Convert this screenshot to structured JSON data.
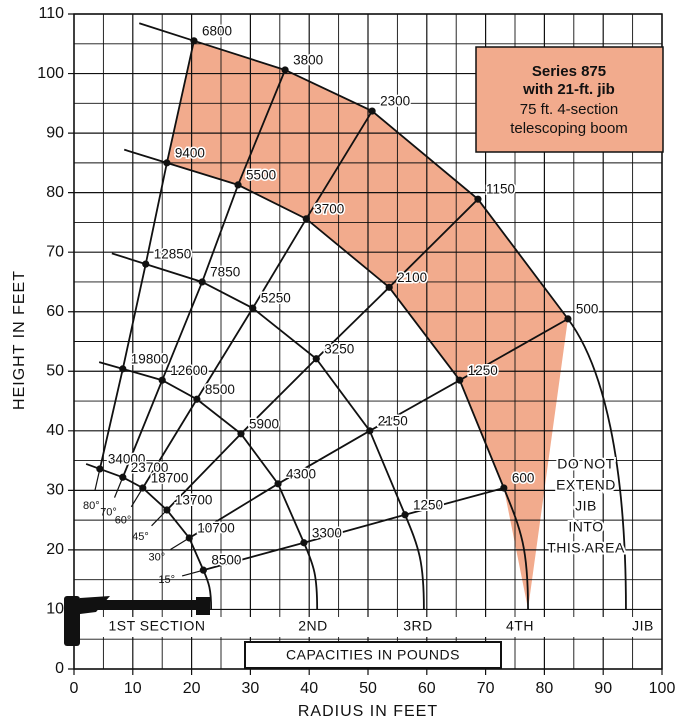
{
  "chart_data": {
    "type": "range-diagram",
    "title": [
      "Series 875",
      "with 21-ft. jib"
    ],
    "subtitle": [
      "75 ft. 4-section",
      "telescoping boom"
    ],
    "xlabel": "RADIUS IN FEET",
    "ylabel": "HEIGHT IN FEET",
    "xlim": [
      0,
      100
    ],
    "ylim": [
      0,
      110
    ],
    "xticks": [
      0,
      10,
      20,
      30,
      40,
      50,
      60,
      70,
      80,
      90,
      100
    ],
    "yticks": [
      0,
      10,
      20,
      30,
      40,
      50,
      60,
      70,
      80,
      90,
      100,
      110
    ],
    "grid": true,
    "series": [
      {
        "name": "80°",
        "x": [
          4.4,
          8.3,
          12.2,
          15.8,
          20.4
        ],
        "y": [
          33.6,
          50.4,
          68.0,
          85.0,
          105.5
        ],
        "capacities": [
          34000,
          19800,
          12850,
          9400,
          6800
        ]
      },
      {
        "name": "70°",
        "x": [
          8.3,
          15.0,
          21.8,
          27.9,
          35.9
        ],
        "y": [
          32.2,
          48.5,
          65.0,
          81.3,
          100.6
        ],
        "capacities": [
          23700,
          12600,
          7850,
          5500,
          3800
        ]
      },
      {
        "name": "60°",
        "x": [
          11.7,
          20.9,
          30.4,
          39.5,
          50.7
        ],
        "y": [
          30.4,
          45.3,
          60.6,
          75.6,
          93.7
        ],
        "capacities": [
          18700,
          8500,
          5250,
          3700,
          2300
        ]
      },
      {
        "name": "45°",
        "x": [
          15.8,
          28.4,
          41.2,
          53.6,
          68.7
        ],
        "y": [
          26.7,
          39.5,
          52.1,
          64.1,
          78.9
        ],
        "capacities": [
          13700,
          5900,
          3250,
          2100,
          1150
        ]
      },
      {
        "name": "30°",
        "x": [
          19.6,
          34.7,
          50.3,
          65.6,
          84.0
        ],
        "y": [
          22.0,
          31.1,
          40.0,
          48.5,
          58.8
        ],
        "capacities": [
          10700,
          4300,
          2150,
          1250,
          500
        ]
      },
      {
        "name": "15°",
        "x": [
          22.0,
          39.1,
          56.3,
          73.1
        ],
        "y": [
          16.6,
          21.2,
          25.9,
          30.4
        ],
        "capacities": [
          8500,
          3300,
          1250,
          600
        ]
      }
    ],
    "sections": [
      "1ST SECTION",
      "2ND",
      "3RD",
      "4TH",
      "JIB"
    ],
    "capacity_caption": "CAPACITIES IN POUNDS",
    "note": [
      "DO NOT",
      "EXTEND",
      "JIB",
      "INTO",
      "THIS AREA"
    ],
    "shade_color": "#f2ab8d",
    "line_color": "#111111"
  }
}
